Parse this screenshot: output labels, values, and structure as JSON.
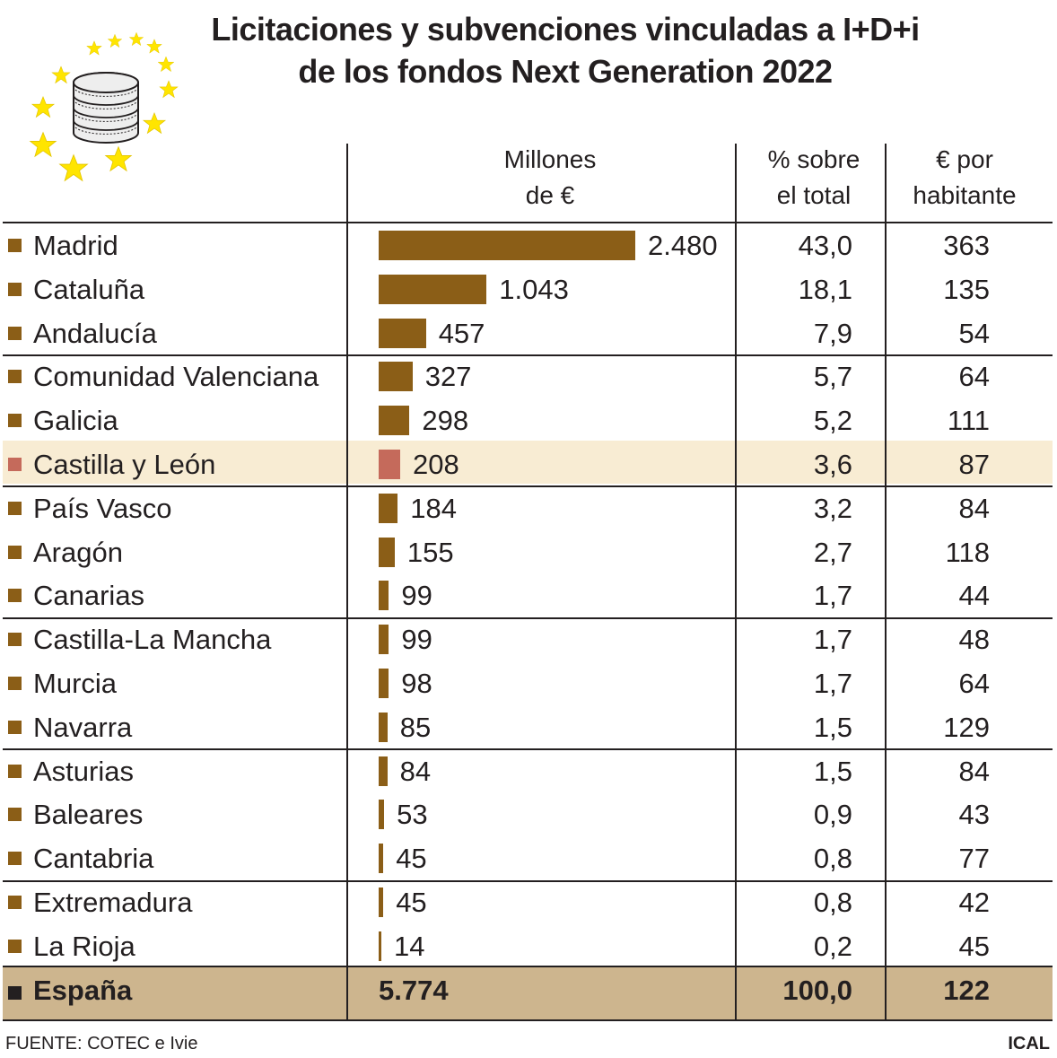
{
  "title_line1": "Licitaciones y subvenciones vinculadas a I+D+i",
  "title_line2": "de los fondos Next Generation 2022",
  "logo_icon": "eu-stars-coins-icon",
  "headers": {
    "millones_line1": "Millones",
    "millones_line2": "de €",
    "pct_line1": "% sobre",
    "pct_line2": "el total",
    "hab_line1": "€ por",
    "hab_line2": "habitante"
  },
  "colors": {
    "bar": "#8b5e17",
    "highlight_bar": "#c56a5b",
    "highlight_row": "#f8ecd3",
    "total_row": "#cdb58e",
    "text": "#231f20"
  },
  "chart_data": {
    "type": "bar",
    "title": "Licitaciones y subvenciones vinculadas a I+D+i de los fondos Next Generation 2022",
    "categories": [
      "Madrid",
      "Cataluña",
      "Andalucía",
      "Comunidad Valenciana",
      "Galicia",
      "Castilla y León",
      "País Vasco",
      "Aragón",
      "Canarias",
      "Castilla-La Mancha",
      "Murcia",
      "Navarra",
      "Asturias",
      "Baleares",
      "Cantabria",
      "Extremadura",
      "La Rioja"
    ],
    "series": [
      {
        "name": "Millones de €",
        "values": [
          2480,
          1043,
          457,
          327,
          298,
          208,
          184,
          155,
          99,
          99,
          98,
          85,
          84,
          53,
          45,
          45,
          14
        ],
        "labels": [
          "2.480",
          "1.043",
          "457",
          "327",
          "298",
          "208",
          "184",
          "155",
          "99",
          "99",
          "98",
          "85",
          "84",
          "53",
          "45",
          "45",
          "14"
        ]
      },
      {
        "name": "% sobre el total",
        "labels": [
          "43,0",
          "18,1",
          "7,9",
          "5,7",
          "5,2",
          "3,6",
          "3,2",
          "2,7",
          "1,7",
          "1,7",
          "1,7",
          "1,5",
          "1,5",
          "0,9",
          "0,8",
          "0,8",
          "0,2"
        ]
      },
      {
        "name": "€ por habitante",
        "labels": [
          "363",
          "135",
          "54",
          "64",
          "111",
          "87",
          "84",
          "118",
          "44",
          "48",
          "64",
          "129",
          "84",
          "43",
          "77",
          "42",
          "45"
        ]
      }
    ],
    "highlight": "Castilla y León",
    "total": {
      "name": "España",
      "millones": "5.774",
      "pct": "100,0",
      "hab": "122"
    },
    "xlim": [
      0,
      2480
    ]
  },
  "source": "FUENTE: COTEC e Ivie",
  "credit": "ICAL"
}
